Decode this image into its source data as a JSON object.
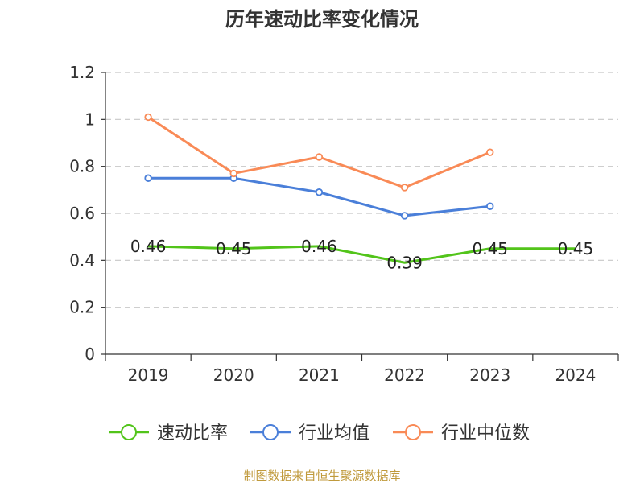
{
  "chart_data": {
    "type": "line",
    "title": "历年速动比率变化情况",
    "categories": [
      "2019",
      "2020",
      "2021",
      "2022",
      "2023",
      "2024"
    ],
    "ylim": [
      0,
      1.2
    ],
    "yticks": [
      0,
      0.2,
      0.4,
      0.6,
      0.8,
      1,
      1.2
    ],
    "ytick_labels": [
      "0",
      "0.2",
      "0.4",
      "0.6",
      "0.8",
      "1",
      "1.2"
    ],
    "grid": true,
    "legend_position": "bottom",
    "series": [
      {
        "name": "速动比率",
        "color": "#52c41a",
        "values": [
          0.46,
          0.45,
          0.46,
          0.39,
          0.45,
          0.45
        ],
        "labels": [
          "0.46",
          "0.45",
          "0.46",
          "0.39",
          "0.45",
          "0.45"
        ],
        "show_points": false,
        "show_labels": true
      },
      {
        "name": "行业均值",
        "color": "#4a7fd9",
        "values": [
          0.75,
          0.75,
          0.69,
          0.59,
          0.63,
          null
        ],
        "show_points": true,
        "show_labels": false
      },
      {
        "name": "行业中位数",
        "color": "#f98a56",
        "values": [
          1.01,
          0.77,
          0.84,
          0.71,
          0.86,
          null
        ],
        "show_points": true,
        "show_labels": false
      }
    ],
    "source": "制图数据来自恒生聚源数据库"
  }
}
